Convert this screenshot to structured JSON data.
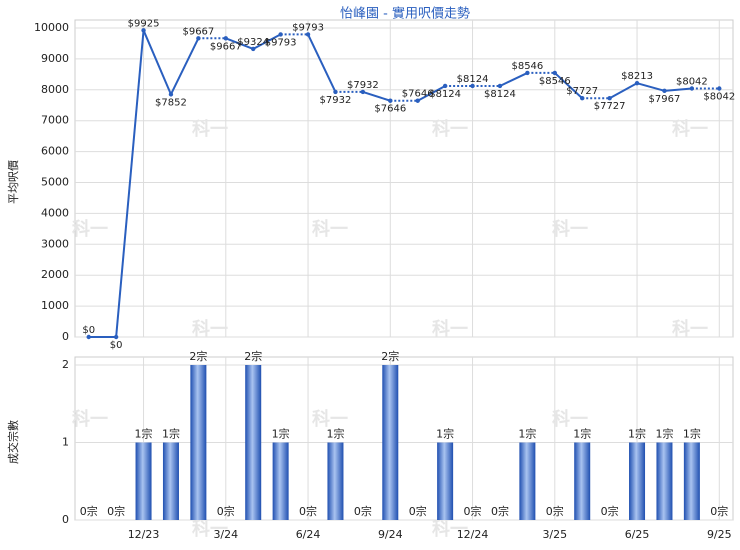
{
  "chart_data": [
    {
      "type": "line",
      "title": "怡峰園 - 實用呎價走勢",
      "y_label": "平均呎價",
      "color": "#2a5fbf",
      "values": [
        0,
        0,
        9925,
        7852,
        9667,
        9667,
        9324,
        9793,
        9793,
        7932,
        7932,
        7646,
        7646,
        8124,
        8124,
        8124,
        8546,
        8546,
        7727,
        7727,
        8213,
        7967,
        8042,
        8042
      ],
      "value_labels": [
        "$0",
        "$0",
        "$9925",
        "$7852",
        "$9667",
        "$9667",
        "$9324",
        "$9793",
        "$9793",
        "$7932",
        "$7932",
        "$7646",
        "$7646",
        "$8124",
        "$8124",
        "$8124",
        "$8546",
        "$8546",
        "$7727",
        "$7727",
        "$8213",
        "$7967",
        "$8042",
        "$8042"
      ],
      "ylim": [
        0,
        10000
      ],
      "yticks": [
        0,
        1000,
        2000,
        3000,
        4000,
        5000,
        6000,
        7000,
        8000,
        9000,
        10000
      ],
      "grid": true,
      "watermark": "科一"
    },
    {
      "type": "bar",
      "y_label": "成交宗數",
      "color": "#3f6fd0",
      "categories": [
        null,
        null,
        "12/23",
        null,
        null,
        "3/24",
        null,
        null,
        "6/24",
        null,
        null,
        "9/24",
        null,
        null,
        "12/24",
        null,
        null,
        "3/25",
        null,
        null,
        "6/25",
        null,
        null,
        "9/25"
      ],
      "values": [
        0,
        0,
        1,
        1,
        2,
        0,
        2,
        1,
        0,
        1,
        0,
        2,
        0,
        1,
        0,
        0,
        1,
        0,
        1,
        0,
        1,
        1,
        1,
        0
      ],
      "value_labels": [
        "0宗",
        "0宗",
        "1宗",
        "1宗",
        "2宗",
        "0宗",
        "2宗",
        "1宗",
        "0宗",
        "1宗",
        "0宗",
        "2宗",
        "0宗",
        "1宗",
        "0宗",
        "0宗",
        "1宗",
        "0宗",
        "1宗",
        "0宗",
        "1宗",
        "1宗",
        "1宗",
        "0宗"
      ],
      "ylim": [
        0,
        2
      ],
      "yticks": [
        0,
        1,
        2
      ],
      "grid": true
    }
  ]
}
